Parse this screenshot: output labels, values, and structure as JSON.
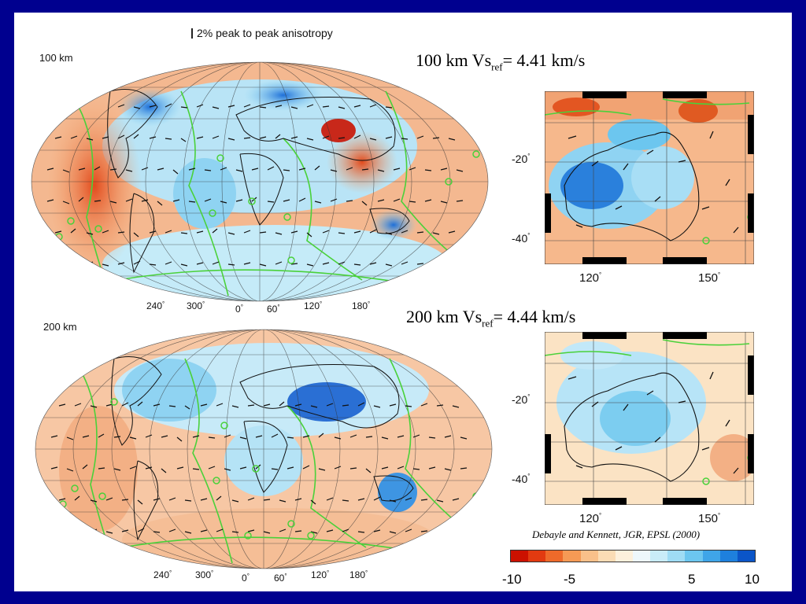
{
  "header": {
    "scale_note": "2% peak to peak anisotropy"
  },
  "maps": {
    "top": {
      "depth_label": "100 km",
      "regional_title_prefix": "100 km Vs",
      "regional_title_sub": "ref",
      "regional_title_suffix": "= 4.41 km/s",
      "lon_ticks": [
        "240",
        "300",
        "0",
        "60",
        "120",
        "180"
      ],
      "lat_ticks": [
        "-20",
        "-40"
      ],
      "regional_lon_ticks": [
        "120",
        "150"
      ]
    },
    "bottom": {
      "depth_label": "200 km",
      "regional_title_prefix": "200 km Vs",
      "regional_title_sub": "ref",
      "regional_title_suffix": "= 4.44 km/s",
      "lon_ticks": [
        "240",
        "300",
        "0",
        "60",
        "120",
        "180"
      ],
      "lat_ticks": [
        "-20",
        "-40"
      ],
      "regional_lon_ticks": [
        "120",
        "150"
      ]
    }
  },
  "citation": "Debayle and Kennett, JGR, EPSL (2000)",
  "colorbar": {
    "labels": [
      "-10",
      "-5",
      "5",
      "10"
    ],
    "colors": [
      "#cc1100",
      "#e23a10",
      "#ee6a2a",
      "#f59a55",
      "#f9c08a",
      "#fbdcb5",
      "#fdf0dc",
      "#eef7fb",
      "#c9ecf8",
      "#9fdcf4",
      "#6cc6ef",
      "#3fa5e8",
      "#1e80dd",
      "#0b55c8"
    ]
  }
}
